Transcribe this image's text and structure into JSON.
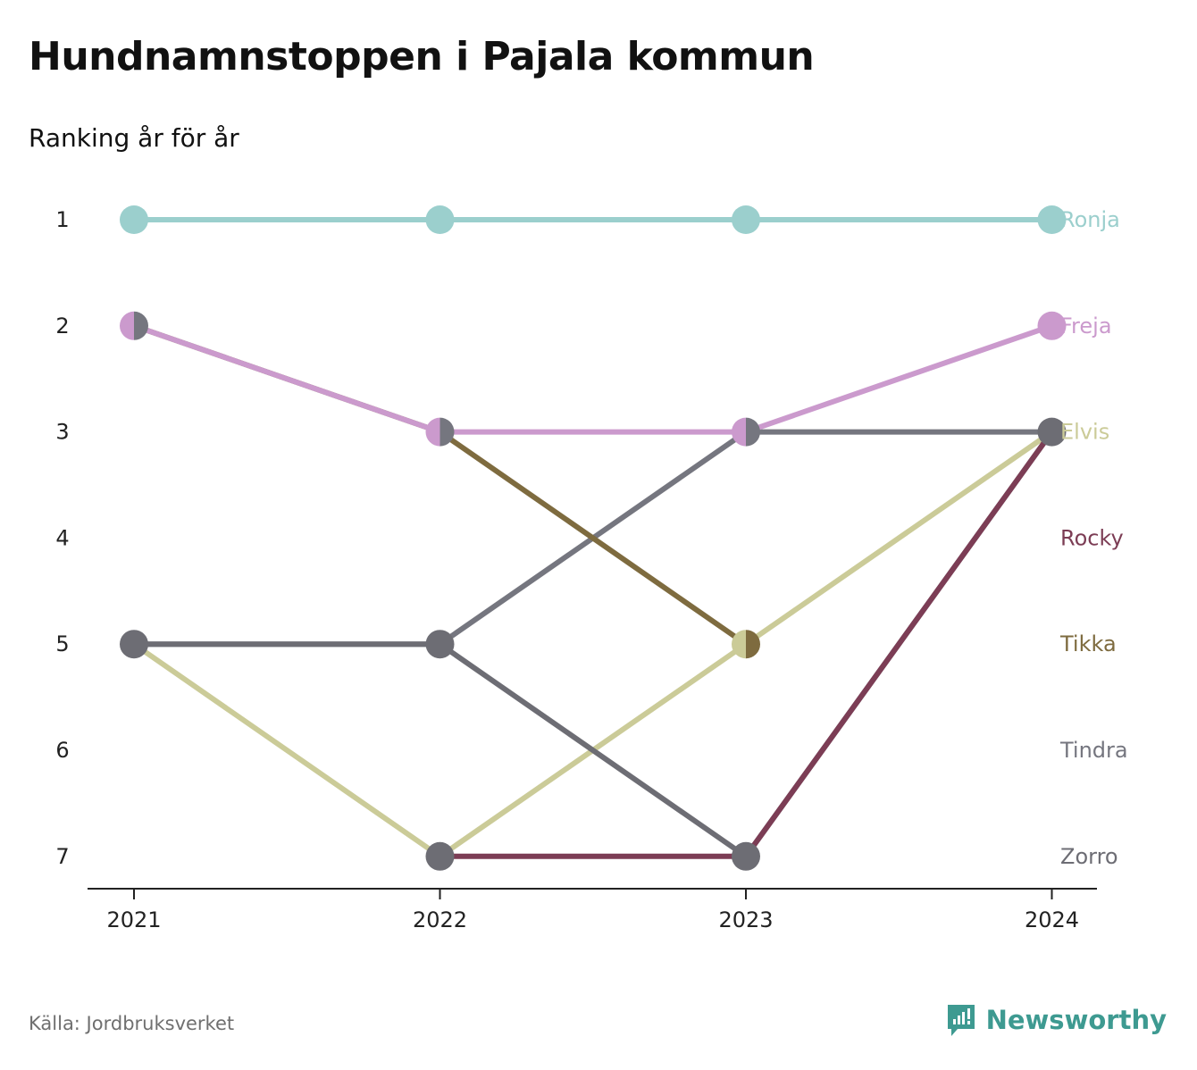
{
  "header": {
    "title": "Hundnamnstoppen i Pajala kommun",
    "subtitle": "Ranking år för år"
  },
  "footer": {
    "source": "Källa: Jordbruksverket",
    "brand": "Newsworthy",
    "brand_icon": "newsworthy-logo-icon"
  },
  "colors": {
    "Ronja": "#9bcfcd",
    "Freja": "#cb9acd",
    "Elvis": "#cbcb98",
    "Rocky": "#7c3d55",
    "Tikka": "#7e6b3f",
    "Tindra": "#75767f",
    "Zorro": "#6d6d74",
    "axis": "#222222",
    "brand": "#3e9a91"
  },
  "chart_data": {
    "type": "line",
    "title": "Hundnamnstoppen i Pajala kommun",
    "subtitle": "Ranking år för år",
    "x": [
      "2021",
      "2022",
      "2023",
      "2024"
    ],
    "y_ticks": [
      1,
      2,
      3,
      4,
      5,
      6,
      7
    ],
    "ylim": [
      1,
      7
    ],
    "y_reversed": true,
    "grid": false,
    "legend": "labels at right end of lines",
    "series": [
      {
        "name": "Ronja",
        "values": [
          1,
          1,
          1,
          1
        ]
      },
      {
        "name": "Freja",
        "values": [
          2,
          3,
          3,
          2
        ]
      },
      {
        "name": "Elvis",
        "values": [
          5,
          7,
          5,
          3
        ]
      },
      {
        "name": "Rocky",
        "values": [
          null,
          7,
          7,
          3
        ]
      },
      {
        "name": "Tikka",
        "values": [
          2,
          3,
          5,
          null
        ]
      },
      {
        "name": "Tindra",
        "values": [
          5,
          5,
          3,
          3
        ]
      },
      {
        "name": "Zorro",
        "values": [
          5,
          5,
          7,
          3
        ]
      }
    ]
  }
}
